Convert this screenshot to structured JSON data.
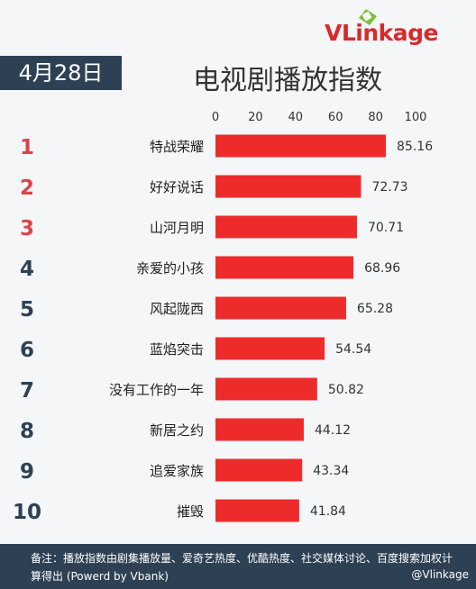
{
  "header": {
    "logo_text": "VLinkage",
    "date": "4月28日",
    "title": "电视剧播放指数"
  },
  "chart_data": {
    "type": "bar",
    "orientation": "horizontal",
    "title": "电视剧播放指数",
    "xlim": [
      0,
      100
    ],
    "ticks": [
      0,
      20,
      40,
      60,
      80,
      100
    ],
    "ranks": [
      "1",
      "2",
      "3",
      "4",
      "5",
      "6",
      "7",
      "8",
      "9",
      "10"
    ],
    "categories": [
      "特战荣耀",
      "好好说话",
      "山河月明",
      "亲爱的小孩",
      "风起陇西",
      "蓝焰突击",
      "没有工作的一年",
      "新居之约",
      "追爱家族",
      "摧毁"
    ],
    "values": [
      85.16,
      72.73,
      70.71,
      68.96,
      65.28,
      54.54,
      50.82,
      44.12,
      43.34,
      41.84
    ],
    "value_labels": [
      "85.16",
      "72.73",
      "70.71",
      "68.96",
      "65.28",
      "54.54",
      "50.82",
      "44.12",
      "43.34",
      "41.84"
    ],
    "colors": {
      "bar": "#ee2b2b",
      "top_rank": "#e0424a",
      "rank": "#2e4154"
    },
    "grid": false,
    "legend": "none"
  },
  "footer": {
    "note": "备注：播放指数由剧集播放量、爱奇艺热度、优酷热度、社交媒体讨论、百度搜索加权计算得出 (Powerd by Vbank)",
    "credit": "@Vlinkage"
  }
}
